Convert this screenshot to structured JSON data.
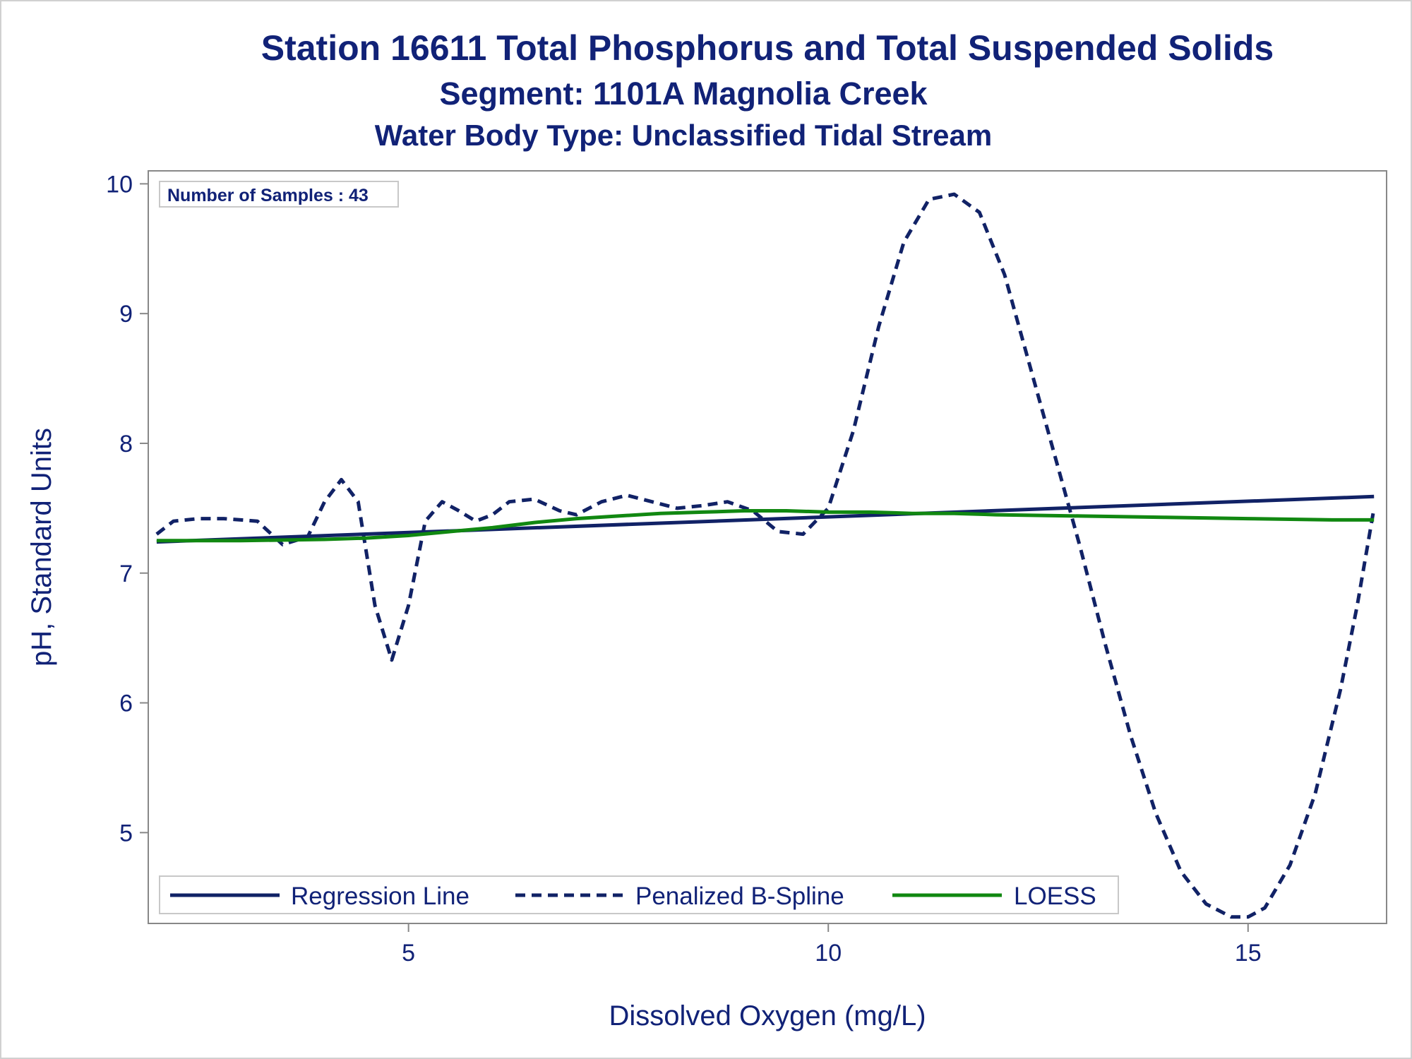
{
  "titles": {
    "line1": "Station 16611  Total Phosphorus and Total Suspended Solids",
    "line2": "Segment: 1101A  Magnolia Creek",
    "line3": "Water Body Type: Unclassified Tidal Stream"
  },
  "inset_label": "Number of Samples : 43",
  "colors": {
    "regression": "#112266",
    "spline": "#112266",
    "loess": "#118811",
    "text": "#112277",
    "axis": "#888888"
  },
  "chart_data": {
    "type": "line",
    "xlabel": "Dissolved Oxygen (mg/L)",
    "ylabel": "pH, Standard Units",
    "xlim": [
      1.9,
      16.65
    ],
    "ylim": [
      4.3,
      10.1
    ],
    "xticks": [
      5,
      10,
      15
    ],
    "yticks": [
      5,
      6,
      7,
      8,
      9,
      10
    ],
    "grid": false,
    "legend_position": "bottom-inside",
    "series": [
      {
        "name": "Regression Line",
        "style": "solid",
        "x": [
          2.0,
          16.5
        ],
        "y": [
          7.24,
          7.59
        ]
      },
      {
        "name": "Penalized B-Spline",
        "style": "dashed",
        "x": [
          2.0,
          2.2,
          2.5,
          2.8,
          3.2,
          3.5,
          3.8,
          4.0,
          4.2,
          4.4,
          4.6,
          4.8,
          5.0,
          5.2,
          5.4,
          5.6,
          5.8,
          6.0,
          6.2,
          6.5,
          6.8,
          7.0,
          7.3,
          7.6,
          7.9,
          8.2,
          8.5,
          8.8,
          9.1,
          9.4,
          9.7,
          10.0,
          10.3,
          10.6,
          10.9,
          11.2,
          11.5,
          11.8,
          12.1,
          12.4,
          12.7,
          13.0,
          13.3,
          13.6,
          13.9,
          14.2,
          14.5,
          14.8,
          15.0,
          15.2,
          15.5,
          15.8,
          16.1,
          16.3,
          16.5
        ],
        "y": [
          7.3,
          7.4,
          7.42,
          7.42,
          7.4,
          7.22,
          7.28,
          7.55,
          7.72,
          7.55,
          6.75,
          6.33,
          6.75,
          7.4,
          7.55,
          7.48,
          7.4,
          7.45,
          7.55,
          7.57,
          7.48,
          7.45,
          7.55,
          7.6,
          7.55,
          7.5,
          7.52,
          7.55,
          7.48,
          7.32,
          7.3,
          7.5,
          8.1,
          8.9,
          9.55,
          9.88,
          9.92,
          9.78,
          9.3,
          8.6,
          7.9,
          7.2,
          6.45,
          5.75,
          5.15,
          4.7,
          4.45,
          4.35,
          4.35,
          4.42,
          4.75,
          5.3,
          6.1,
          6.75,
          7.5
        ]
      },
      {
        "name": "LOESS",
        "style": "solid",
        "x": [
          2.0,
          3.0,
          4.0,
          4.5,
          5.0,
          5.5,
          6.0,
          6.5,
          7.0,
          7.5,
          8.0,
          8.5,
          9.0,
          9.5,
          10.0,
          10.5,
          11.0,
          11.5,
          12.0,
          13.0,
          14.0,
          15.0,
          16.0,
          16.5
        ],
        "y": [
          7.25,
          7.25,
          7.26,
          7.27,
          7.29,
          7.32,
          7.35,
          7.39,
          7.42,
          7.44,
          7.46,
          7.47,
          7.48,
          7.48,
          7.47,
          7.47,
          7.46,
          7.46,
          7.45,
          7.44,
          7.43,
          7.42,
          7.41,
          7.41
        ]
      }
    ]
  }
}
